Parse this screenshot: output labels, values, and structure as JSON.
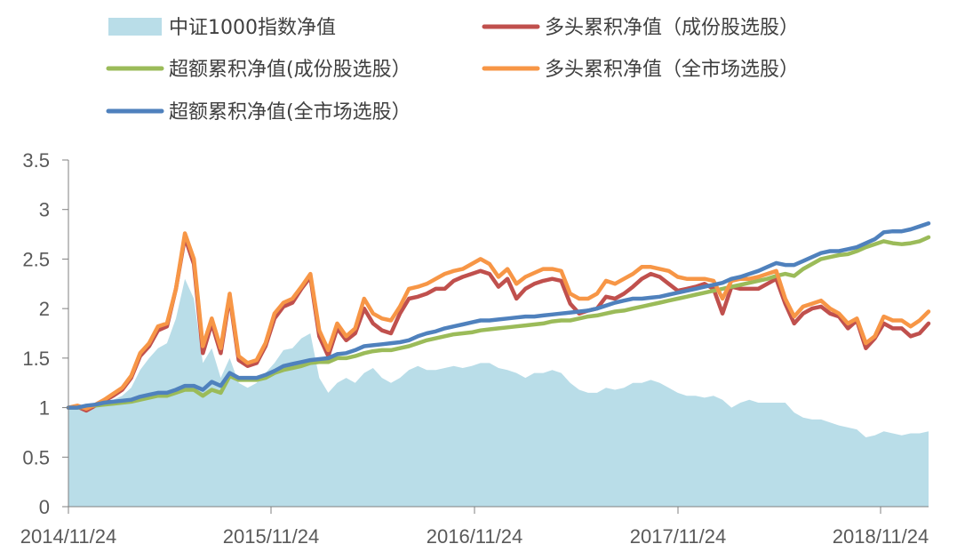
{
  "chart_data": {
    "type": "line",
    "x_label_ticks": [
      "2014/11/24",
      "2015/11/24",
      "2016/11/24",
      "2017/11/24",
      "2018/11/24"
    ],
    "ylim": [
      0,
      3.5
    ],
    "yticks": [
      "0",
      "0.5",
      "1",
      "1.5",
      "2",
      "2.5",
      "3",
      "3.5"
    ],
    "legend_position": "top",
    "grid": false,
    "series": [
      {
        "name": "中证1000指数净值",
        "type": "area",
        "color": "#b9dde8",
        "values": [
          1.0,
          1.02,
          1.0,
          1.03,
          1.05,
          1.08,
          1.12,
          1.2,
          1.38,
          1.5,
          1.6,
          1.65,
          1.9,
          2.3,
          2.1,
          1.45,
          1.6,
          1.3,
          1.5,
          1.25,
          1.2,
          1.25,
          1.35,
          1.45,
          1.58,
          1.6,
          1.7,
          1.75,
          1.3,
          1.15,
          1.25,
          1.3,
          1.25,
          1.35,
          1.4,
          1.3,
          1.25,
          1.3,
          1.38,
          1.42,
          1.38,
          1.38,
          1.4,
          1.42,
          1.4,
          1.42,
          1.45,
          1.45,
          1.4,
          1.38,
          1.35,
          1.3,
          1.35,
          1.35,
          1.38,
          1.35,
          1.25,
          1.18,
          1.15,
          1.15,
          1.2,
          1.18,
          1.2,
          1.25,
          1.25,
          1.28,
          1.25,
          1.2,
          1.15,
          1.12,
          1.12,
          1.1,
          1.12,
          1.08,
          1.0,
          1.05,
          1.08,
          1.05,
          1.05,
          1.05,
          1.05,
          0.95,
          0.9,
          0.88,
          0.88,
          0.85,
          0.82,
          0.8,
          0.78,
          0.7,
          0.72,
          0.76,
          0.74,
          0.72,
          0.74,
          0.74,
          0.76
        ]
      },
      {
        "name": "多头累积净值（成份股选股）",
        "type": "line",
        "color": "#c0504d",
        "values": [
          1.0,
          1.01,
          0.97,
          1.02,
          1.07,
          1.12,
          1.18,
          1.3,
          1.52,
          1.62,
          1.78,
          1.82,
          2.2,
          2.72,
          2.45,
          1.55,
          1.85,
          1.55,
          2.12,
          1.48,
          1.42,
          1.45,
          1.62,
          1.9,
          2.02,
          2.06,
          2.2,
          2.32,
          1.72,
          1.52,
          1.8,
          1.68,
          1.75,
          2.0,
          1.85,
          1.78,
          1.75,
          1.95,
          2.1,
          2.12,
          2.15,
          2.2,
          2.2,
          2.28,
          2.32,
          2.35,
          2.38,
          2.35,
          2.22,
          2.3,
          2.1,
          2.2,
          2.25,
          2.28,
          2.3,
          2.28,
          2.05,
          1.95,
          1.98,
          2.0,
          2.12,
          2.1,
          2.15,
          2.22,
          2.3,
          2.35,
          2.32,
          2.25,
          2.18,
          2.2,
          2.22,
          2.25,
          2.2,
          1.95,
          2.22,
          2.2,
          2.2,
          2.2,
          2.25,
          2.3,
          2.05,
          1.85,
          1.95,
          2.0,
          2.02,
          1.95,
          1.92,
          1.8,
          1.88,
          1.6,
          1.7,
          1.85,
          1.8,
          1.8,
          1.72,
          1.75,
          1.85
        ]
      },
      {
        "name": "超额累积净值(成份股选股）",
        "type": "line",
        "color": "#9bbb59",
        "values": [
          1.0,
          1.0,
          1.01,
          1.02,
          1.03,
          1.04,
          1.05,
          1.06,
          1.08,
          1.1,
          1.12,
          1.12,
          1.15,
          1.18,
          1.18,
          1.12,
          1.18,
          1.15,
          1.32,
          1.28,
          1.28,
          1.28,
          1.3,
          1.35,
          1.38,
          1.4,
          1.42,
          1.45,
          1.46,
          1.46,
          1.5,
          1.5,
          1.52,
          1.55,
          1.57,
          1.58,
          1.58,
          1.6,
          1.62,
          1.65,
          1.68,
          1.7,
          1.72,
          1.74,
          1.75,
          1.76,
          1.78,
          1.79,
          1.8,
          1.81,
          1.82,
          1.83,
          1.84,
          1.85,
          1.87,
          1.88,
          1.88,
          1.9,
          1.92,
          1.93,
          1.95,
          1.97,
          1.98,
          2.0,
          2.02,
          2.04,
          2.06,
          2.08,
          2.1,
          2.12,
          2.14,
          2.16,
          2.18,
          2.2,
          2.22,
          2.24,
          2.26,
          2.28,
          2.3,
          2.33,
          2.35,
          2.33,
          2.4,
          2.45,
          2.5,
          2.52,
          2.54,
          2.55,
          2.58,
          2.62,
          2.65,
          2.68,
          2.66,
          2.65,
          2.66,
          2.68,
          2.72
        ]
      },
      {
        "name": "多头累积净值（全市场选股）",
        "type": "line",
        "color": "#f79646",
        "values": [
          1.0,
          1.02,
          0.99,
          1.03,
          1.08,
          1.14,
          1.2,
          1.32,
          1.55,
          1.65,
          1.82,
          1.85,
          2.2,
          2.76,
          2.5,
          1.62,
          1.9,
          1.6,
          2.15,
          1.52,
          1.45,
          1.48,
          1.65,
          1.95,
          2.06,
          2.1,
          2.22,
          2.35,
          1.78,
          1.58,
          1.85,
          1.72,
          1.8,
          2.1,
          1.95,
          1.9,
          1.88,
          2.02,
          2.2,
          2.22,
          2.25,
          2.3,
          2.35,
          2.38,
          2.4,
          2.45,
          2.5,
          2.45,
          2.32,
          2.4,
          2.25,
          2.32,
          2.36,
          2.4,
          2.4,
          2.38,
          2.15,
          2.1,
          2.1,
          2.15,
          2.28,
          2.25,
          2.3,
          2.35,
          2.42,
          2.42,
          2.4,
          2.38,
          2.32,
          2.3,
          2.3,
          2.3,
          2.28,
          2.1,
          2.28,
          2.3,
          2.3,
          2.32,
          2.35,
          2.38,
          2.1,
          1.92,
          2.02,
          2.05,
          2.08,
          2.0,
          1.95,
          1.85,
          1.9,
          1.65,
          1.72,
          1.92,
          1.88,
          1.88,
          1.82,
          1.88,
          1.97
        ]
      },
      {
        "name": "超额累积净值(全市场选股）",
        "type": "line",
        "color": "#4f81bd",
        "values": [
          1.0,
          1.0,
          1.02,
          1.03,
          1.05,
          1.06,
          1.07,
          1.08,
          1.11,
          1.13,
          1.15,
          1.15,
          1.18,
          1.22,
          1.22,
          1.18,
          1.26,
          1.22,
          1.35,
          1.3,
          1.3,
          1.3,
          1.33,
          1.37,
          1.42,
          1.44,
          1.46,
          1.48,
          1.49,
          1.5,
          1.54,
          1.55,
          1.58,
          1.62,
          1.63,
          1.64,
          1.65,
          1.66,
          1.68,
          1.72,
          1.75,
          1.77,
          1.8,
          1.82,
          1.84,
          1.86,
          1.88,
          1.88,
          1.89,
          1.9,
          1.91,
          1.92,
          1.92,
          1.93,
          1.94,
          1.95,
          1.96,
          1.97,
          1.98,
          2.0,
          2.03,
          2.06,
          2.08,
          2.1,
          2.1,
          2.11,
          2.12,
          2.14,
          2.16,
          2.18,
          2.2,
          2.22,
          2.24,
          2.26,
          2.3,
          2.32,
          2.35,
          2.38,
          2.42,
          2.46,
          2.44,
          2.44,
          2.48,
          2.52,
          2.56,
          2.58,
          2.58,
          2.6,
          2.62,
          2.66,
          2.7,
          2.77,
          2.78,
          2.78,
          2.8,
          2.83,
          2.86
        ]
      }
    ]
  }
}
